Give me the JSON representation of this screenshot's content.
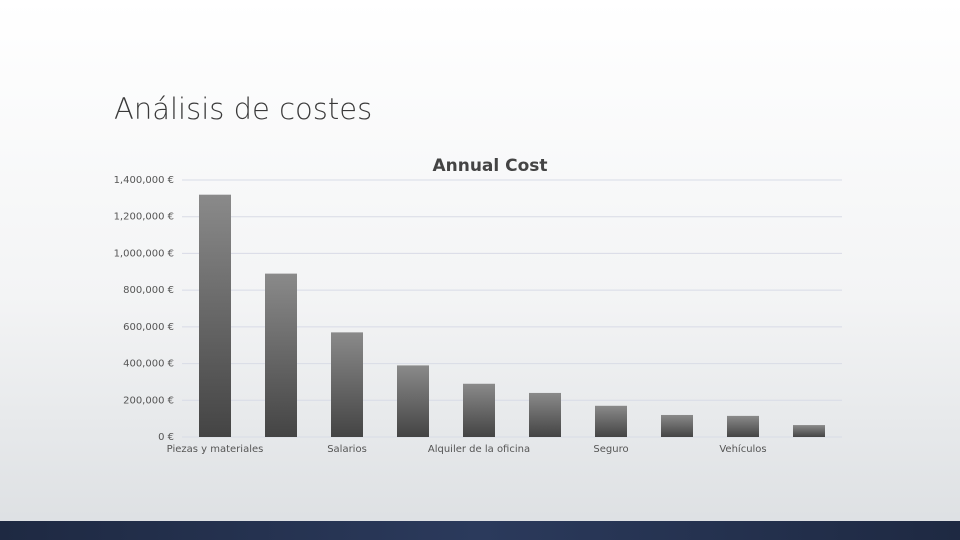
{
  "slide_title": "Análisis de costes",
  "chart_data": {
    "type": "bar",
    "title": "Annual Cost",
    "categories": [
      "Piezas y materiales",
      null,
      "Salarios",
      null,
      "Alquiler de la oficina",
      null,
      "Seguro",
      null,
      "Vehículos",
      null
    ],
    "values": [
      1320000,
      890000,
      570000,
      390000,
      290000,
      240000,
      170000,
      120000,
      115000,
      65000
    ],
    "color": "#8a8a8a",
    "ylim": [
      0,
      1400000
    ],
    "yticks": [
      {
        "value": 0,
        "label": "0 €"
      },
      {
        "value": 200000,
        "label": "200,000 €"
      },
      {
        "value": 400000,
        "label": "400,000 €"
      },
      {
        "value": 600000,
        "label": "600,000 €"
      },
      {
        "value": 800000,
        "label": "800,000 €"
      },
      {
        "value": 1000000,
        "label": "1,000,000 €"
      },
      {
        "value": 1200000,
        "label": "1,200,000 €"
      },
      {
        "value": 1400000,
        "label": "1,400,000 €"
      }
    ],
    "grid": true
  }
}
